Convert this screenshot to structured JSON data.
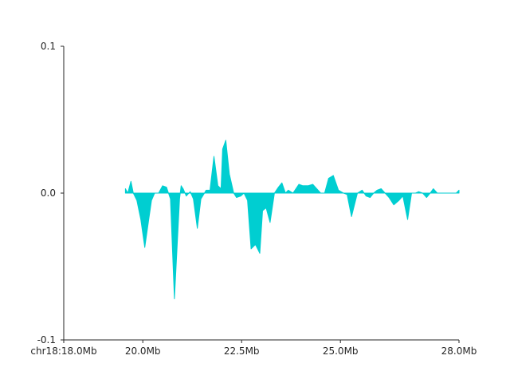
{
  "chart_data": {
    "type": "area",
    "title": "",
    "xlabel": "",
    "ylabel": "",
    "color": "#00CED1",
    "xlim": [
      18.0,
      28.0
    ],
    "ylim": [
      -0.1,
      0.1
    ],
    "x_ticks": [
      {
        "value": 18.0,
        "label": "chr18:18.0Mb"
      },
      {
        "value": 20.0,
        "label": "20.0Mb"
      },
      {
        "value": 22.5,
        "label": "22.5Mb"
      },
      {
        "value": 25.0,
        "label": "25.0Mb"
      },
      {
        "value": 28.0,
        "label": "28.0Mb"
      }
    ],
    "y_ticks": [
      {
        "value": 0.1,
        "label": "0.1"
      },
      {
        "value": 0.0,
        "label": "0.0"
      },
      {
        "value": -0.1,
        "label": "-0.1"
      }
    ],
    "grid": false,
    "legend": "none",
    "series": [
      {
        "x": [
          19.56,
          19.62,
          19.7,
          19.76,
          19.85,
          19.95,
          20.05,
          20.15,
          20.22,
          20.3,
          20.4,
          20.5,
          20.6,
          20.7,
          20.8,
          20.93,
          20.97,
          21.02,
          21.1,
          21.2,
          21.28,
          21.38,
          21.47,
          21.56,
          21.6,
          21.7,
          21.8,
          21.9,
          21.98,
          22.02,
          22.1,
          22.19,
          22.3,
          22.37,
          22.48,
          22.56,
          22.65,
          22.74,
          22.85,
          22.96,
          23.03,
          23.12,
          23.22,
          23.33,
          23.43,
          23.52,
          23.61,
          23.68,
          23.8,
          23.95,
          24.05,
          24.18,
          24.3,
          24.4,
          24.5,
          24.6,
          24.7,
          24.82,
          24.95,
          25.08,
          25.17,
          25.28,
          25.43,
          25.55,
          25.65,
          25.75,
          25.84,
          25.93,
          26.03,
          26.13,
          26.23,
          26.35,
          26.48,
          26.58,
          26.7,
          26.8,
          26.9,
          26.98,
          27.08,
          27.18,
          27.27,
          27.35,
          27.45,
          27.55,
          27.65,
          27.75,
          27.85,
          27.93,
          28.0
        ],
        "y": [
          0.003,
          0.0,
          0.008,
          0.0,
          -0.005,
          -0.018,
          -0.037,
          -0.018,
          -0.005,
          0.0,
          0.0,
          0.005,
          0.004,
          -0.004,
          -0.072,
          -0.004,
          0.005,
          0.003,
          -0.002,
          0.001,
          -0.004,
          -0.024,
          -0.004,
          0.0,
          0.002,
          0.002,
          0.025,
          0.005,
          0.003,
          0.03,
          0.036,
          0.013,
          0.0,
          -0.003,
          -0.002,
          0.0,
          -0.005,
          -0.038,
          -0.035,
          -0.041,
          -0.012,
          -0.01,
          -0.02,
          0.0,
          0.004,
          0.007,
          0.0,
          0.002,
          0.0,
          0.006,
          0.005,
          0.005,
          0.006,
          0.003,
          0.0,
          0.0,
          0.01,
          0.012,
          0.002,
          0.0,
          -0.001,
          -0.016,
          0.0,
          0.002,
          -0.002,
          -0.003,
          0.0,
          0.002,
          0.003,
          0.0,
          -0.003,
          -0.008,
          -0.005,
          -0.002,
          -0.018,
          0.0,
          0.0,
          0.001,
          0.0,
          -0.003,
          0.0,
          0.003,
          0.0,
          0.0,
          0.0,
          0.0,
          0.0,
          0.0,
          0.002
        ]
      }
    ]
  }
}
